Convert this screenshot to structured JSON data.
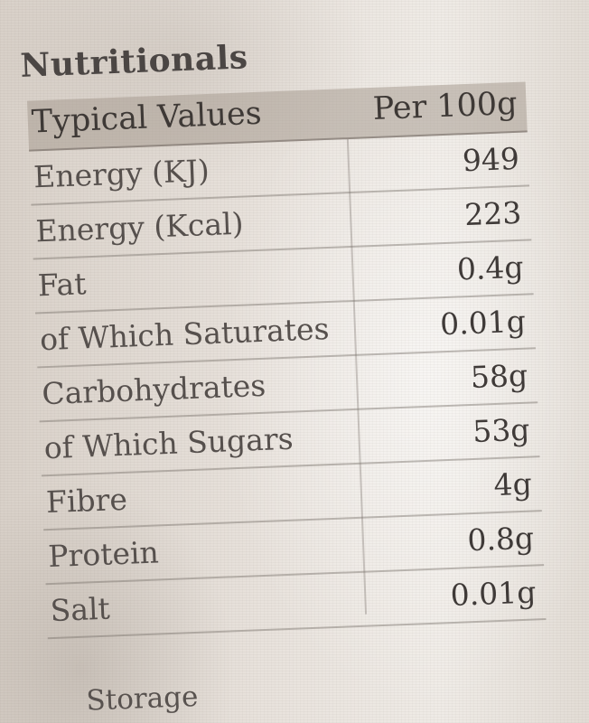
{
  "panel": {
    "heading": "Nutritionals",
    "columns": {
      "name": "Typical Values",
      "value": "Per 100g"
    },
    "rows": [
      {
        "name": "Energy (KJ)",
        "value": "949"
      },
      {
        "name": "Energy (Kcal)",
        "value": "223"
      },
      {
        "name": "Fat",
        "value": "0.4g"
      },
      {
        "name": "of Which Saturates",
        "value": "0.01g"
      },
      {
        "name": "Carbohydrates",
        "value": "58g"
      },
      {
        "name": "of Which Sugars",
        "value": "53g"
      },
      {
        "name": "Fibre",
        "value": "4g"
      },
      {
        "name": "Protein",
        "value": "0.8g"
      },
      {
        "name": "Salt",
        "value": "0.01g"
      }
    ],
    "footer": "Storage"
  }
}
